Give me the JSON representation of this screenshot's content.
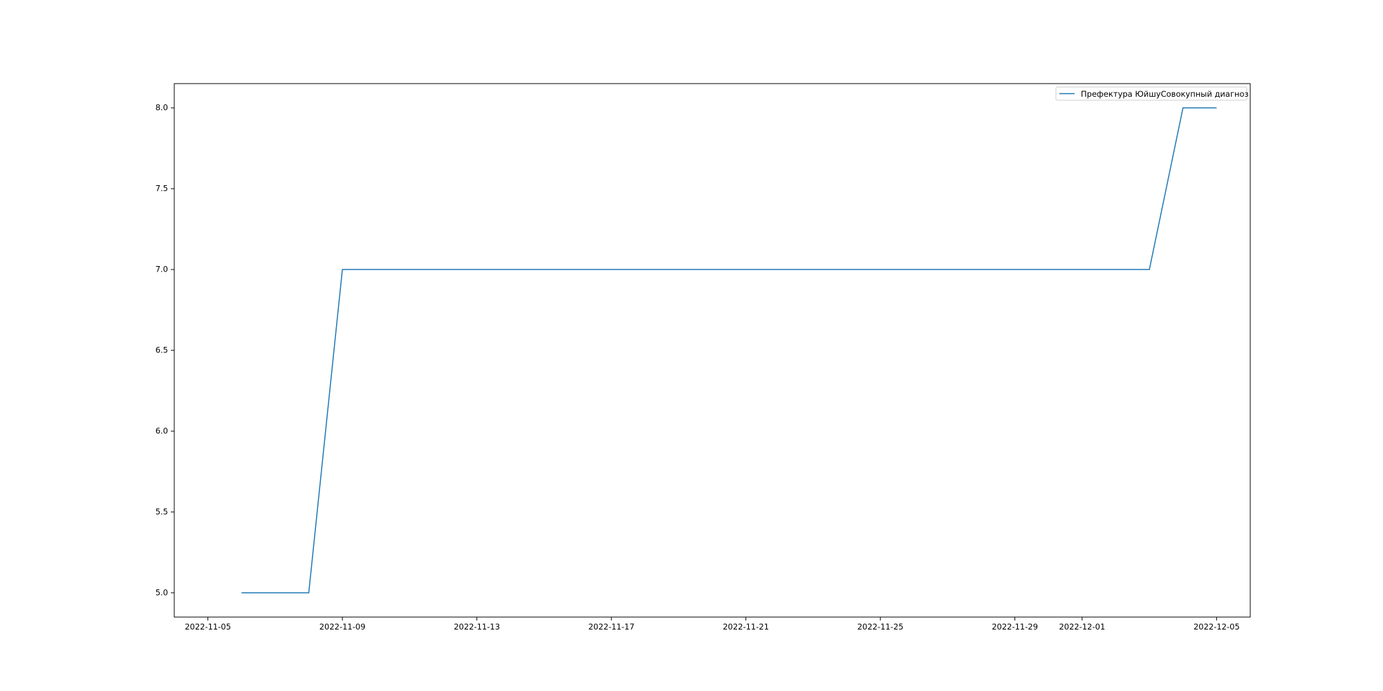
{
  "chart_data": {
    "type": "line",
    "title": "",
    "xlabel": "",
    "ylabel": "",
    "x_axis_type": "date",
    "x_range": [
      "2022-11-04",
      "2022-12-06"
    ],
    "ylim": [
      4.85,
      8.15
    ],
    "x_ticks": [
      "2022-11-05",
      "2022-11-09",
      "2022-11-13",
      "2022-11-17",
      "2022-11-21",
      "2022-11-25",
      "2022-11-29",
      "2022-12-01",
      "2022-12-05"
    ],
    "y_ticks": [
      "5.0",
      "5.5",
      "6.0",
      "6.5",
      "7.0",
      "7.5",
      "8.0"
    ],
    "grid": false,
    "legend_position": "top-right",
    "series": [
      {
        "name": "Префектура ЮйшуСовокупный диагноз",
        "color": "#1f77b4",
        "x": [
          "2022-11-06",
          "2022-11-08",
          "2022-11-09",
          "2022-12-03",
          "2022-12-04",
          "2022-12-05"
        ],
        "y": [
          5,
          5,
          7,
          7,
          8,
          8
        ]
      }
    ]
  }
}
